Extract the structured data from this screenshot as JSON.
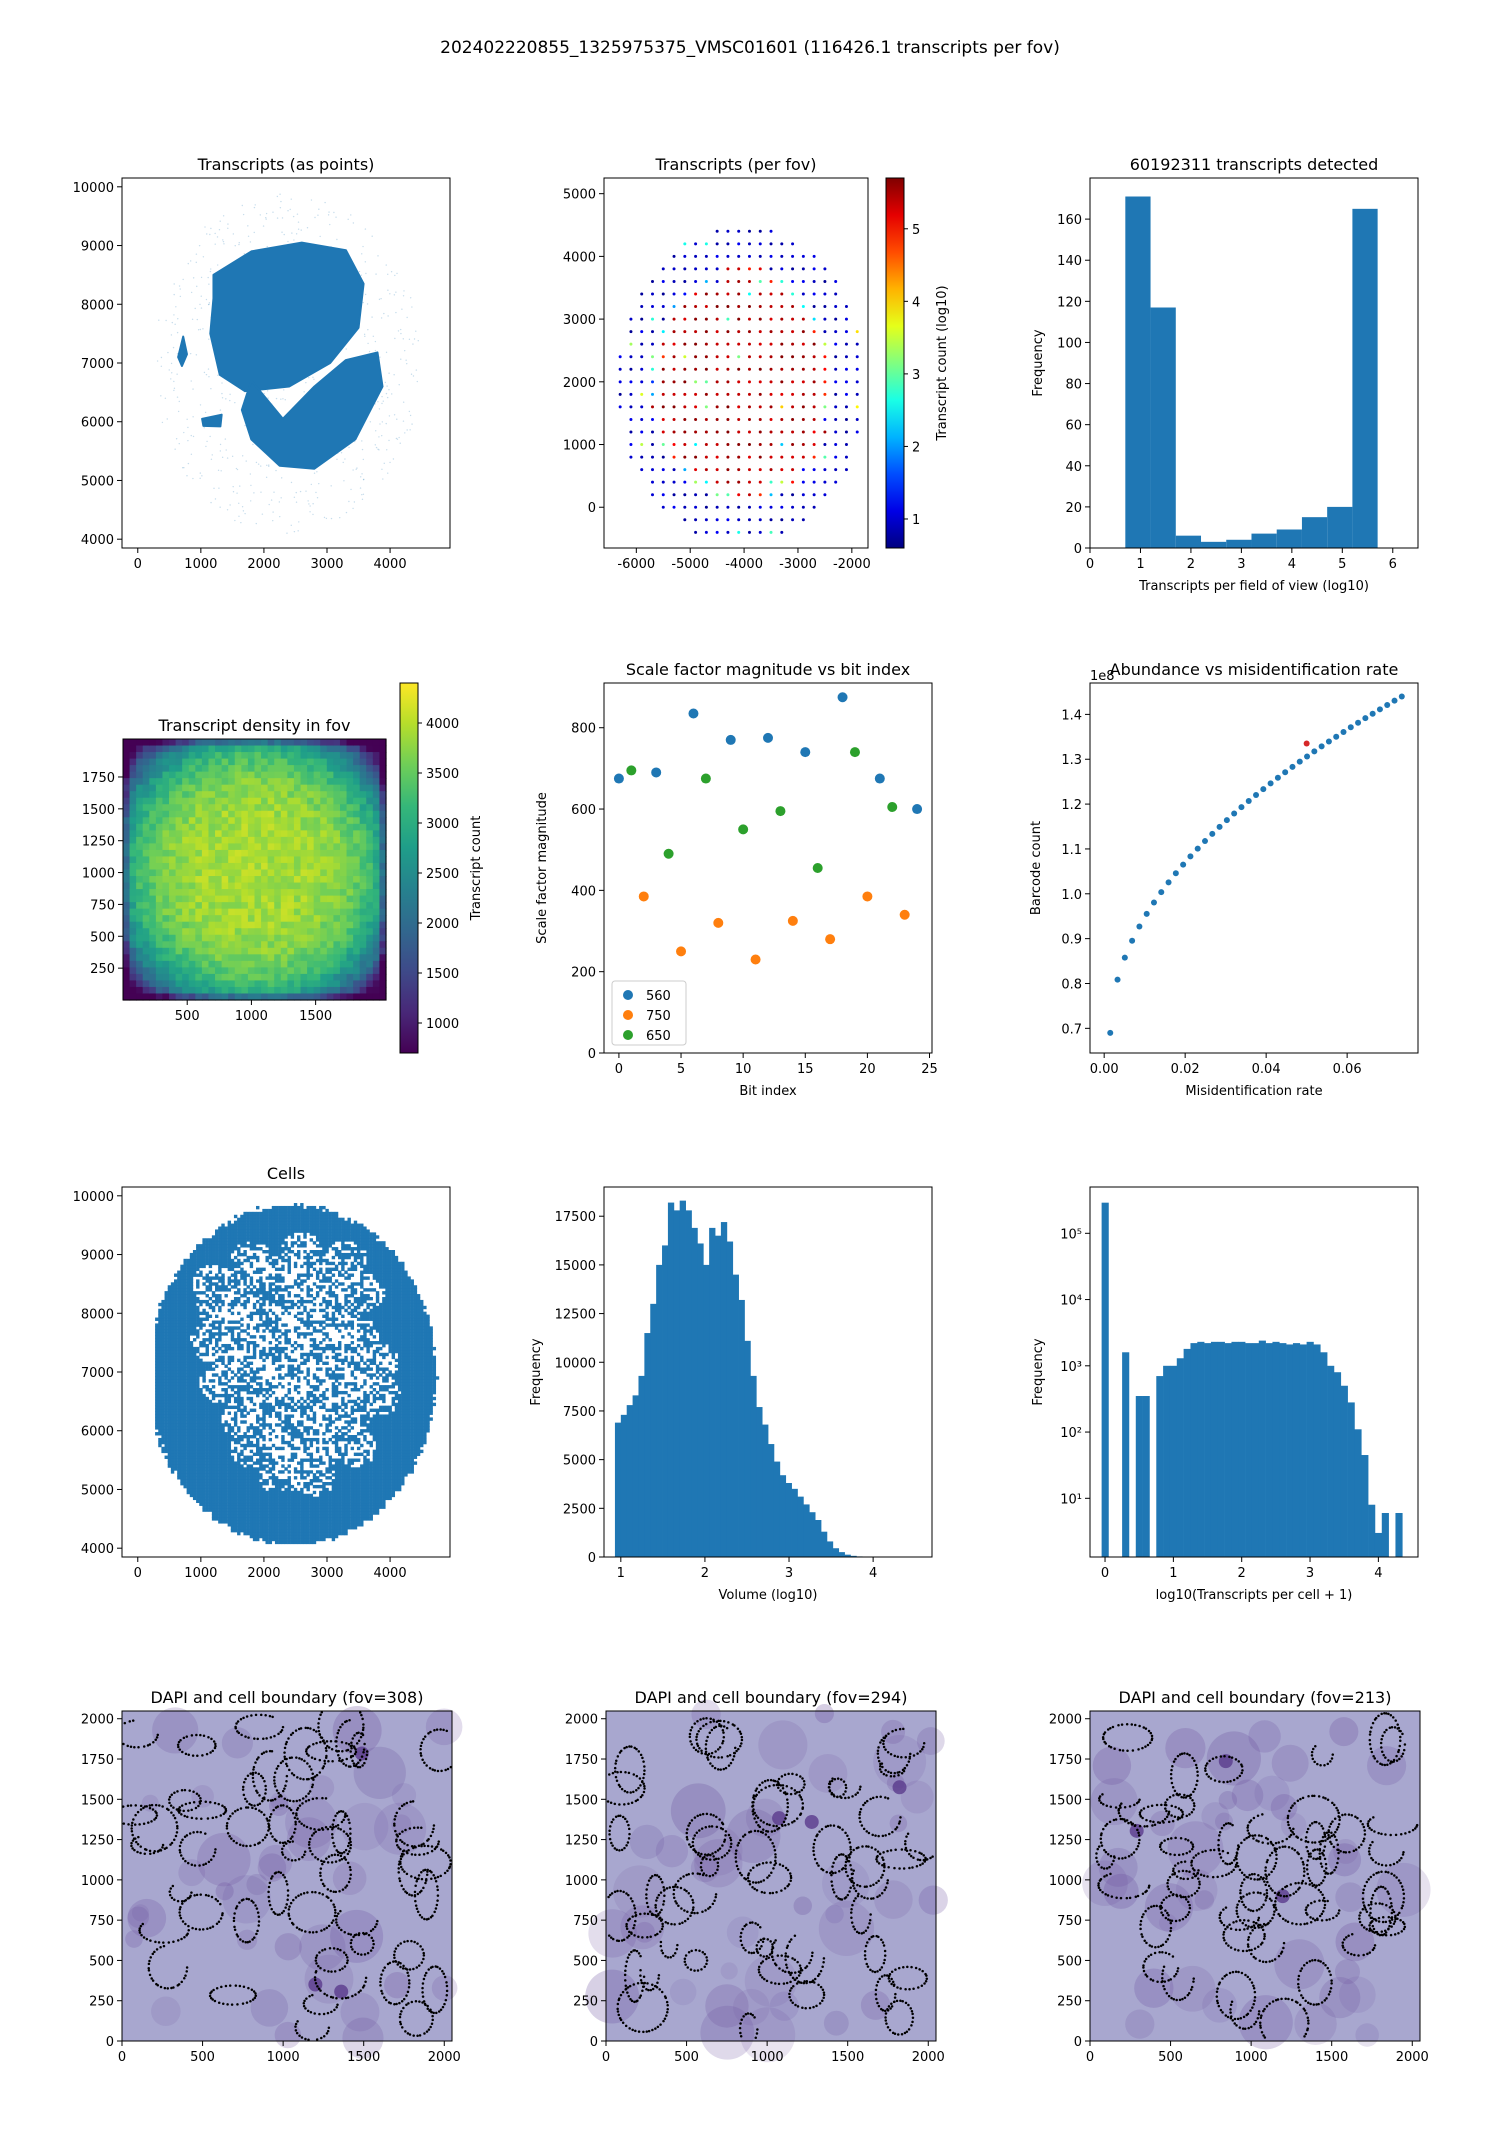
{
  "suptitle": "202402220855_1325975375_VMSC01601 (116426.1 transcripts per fov)",
  "colors": {
    "blue": "#1f77b4",
    "orange": "#ff7f0e",
    "green": "#2ca02c",
    "red": "#d62728",
    "dapi_bg": "#a8a7cf",
    "dapi_nuc": "#6a4d9c"
  },
  "chart_data": [
    {
      "id": "transcripts-points",
      "type": "scatter",
      "title": "Transcripts (as points)",
      "xlabel": "",
      "ylabel": "",
      "xlim": [
        -250,
        4950
      ],
      "ylim": [
        3850,
        10150
      ],
      "xticks": [
        0,
        1000,
        2000,
        3000,
        4000
      ],
      "yticks": [
        4000,
        5000,
        6000,
        7000,
        8000,
        9000,
        10000
      ],
      "shapes": [
        {
          "name": "upper-lobe",
          "points": [
            [
              1200,
              8500
            ],
            [
              1800,
              8900
            ],
            [
              2600,
              9050
            ],
            [
              3300,
              8920
            ],
            [
              3580,
              8350
            ],
            [
              3500,
              7600
            ],
            [
              3050,
              7000
            ],
            [
              2400,
              6600
            ],
            [
              1700,
              6520
            ],
            [
              1300,
              6800
            ],
            [
              1150,
              7500
            ],
            [
              1200,
              8100
            ]
          ]
        },
        {
          "name": "lower-lobe",
          "points": [
            [
              1800,
              6700
            ],
            [
              2300,
              6050
            ],
            [
              2800,
              6600
            ],
            [
              3300,
              7050
            ],
            [
              3800,
              7180
            ],
            [
              3880,
              6600
            ],
            [
              3450,
              5700
            ],
            [
              2800,
              5200
            ],
            [
              2250,
              5250
            ],
            [
              1800,
              5700
            ],
            [
              1650,
              6200
            ]
          ]
        },
        {
          "name": "fragment-1",
          "points": [
            [
              640,
              7100
            ],
            [
              720,
              7450
            ],
            [
              780,
              7150
            ],
            [
              700,
              6950
            ]
          ]
        },
        {
          "name": "fragment-2",
          "points": [
            [
              1020,
              6050
            ],
            [
              1330,
              6120
            ],
            [
              1310,
              5920
            ],
            [
              1040,
              5930
            ]
          ]
        }
      ]
    },
    {
      "id": "transcripts-per-fov",
      "type": "scatter",
      "title": "Transcripts (per fov)",
      "xlabel": "",
      "ylabel": "",
      "xlim": [
        -6600,
        -1700
      ],
      "ylim": [
        -650,
        5250
      ],
      "xticks": [
        -6000,
        -5000,
        -4000,
        -3000,
        -2000
      ],
      "yticks": [
        0,
        1000,
        2000,
        3000,
        4000,
        5000
      ],
      "grid": {
        "x_start": -6300,
        "x_step": 200,
        "x_count": 36,
        "y_start": -400,
        "y_step": 200,
        "y_count": 29,
        "center": [
          -4050,
          1950
        ],
        "rx": 2300,
        "ry": 2550
      },
      "value_range": [
        0.6,
        5.7
      ],
      "colorbar": {
        "label": "Transcript count (log10)",
        "ticks": [
          1,
          2,
          3,
          4,
          5
        ]
      }
    },
    {
      "id": "transcripts-hist",
      "type": "bar",
      "title": "60192311 transcripts detected",
      "xlabel": "Transcripts per field of view (log10)",
      "ylabel": "Frequency",
      "xlim": [
        0,
        6.5
      ],
      "ylim": [
        0,
        180
      ],
      "xticks": [
        0,
        1,
        2,
        3,
        4,
        5,
        6
      ],
      "yticks": [
        0,
        20,
        40,
        60,
        80,
        100,
        120,
        140,
        160
      ],
      "bin_edges": [
        0.7,
        1.2,
        1.7,
        2.2,
        2.7,
        3.2,
        3.7,
        4.2,
        4.7,
        5.2,
        5.7
      ],
      "values": [
        171,
        117,
        6,
        3,
        4,
        7,
        9,
        15,
        20,
        165
      ]
    },
    {
      "id": "density-heatmap",
      "type": "heatmap",
      "title": "Transcript density in fov",
      "xlabel": "",
      "ylabel": "",
      "xlim": [
        0,
        2048
      ],
      "ylim": [
        0,
        2048
      ],
      "xticks": [
        500,
        1000,
        1500
      ],
      "yticks": [
        250,
        500,
        750,
        1000,
        1250,
        1500,
        1750
      ],
      "value_range": [
        700,
        4400
      ],
      "colorbar": {
        "label": "Transcript count",
        "ticks": [
          1000,
          1500,
          2000,
          2500,
          3000,
          3500,
          4000
        ]
      }
    },
    {
      "id": "scale-factor",
      "type": "scatter",
      "title": "Scale factor magnitude vs bit index",
      "xlabel": "Bit index",
      "ylabel": "Scale factor magnitude",
      "xlim": [
        -1.2,
        25.2
      ],
      "ylim": [
        0,
        910
      ],
      "xticks": [
        0,
        5,
        10,
        15,
        20,
        25
      ],
      "yticks": [
        0,
        200,
        400,
        600,
        800
      ],
      "legend": "lower-left",
      "series": [
        {
          "name": "560",
          "x": [
            0,
            3,
            6,
            9,
            12,
            15,
            18,
            21,
            24
          ],
          "y": [
            675,
            690,
            835,
            770,
            775,
            740,
            875,
            675,
            600
          ]
        },
        {
          "name": "750",
          "x": [
            2,
            5,
            8,
            11,
            14,
            17,
            20,
            23
          ],
          "y": [
            385,
            250,
            320,
            230,
            325,
            280,
            385,
            340
          ]
        },
        {
          "name": "650",
          "x": [
            1,
            4,
            7,
            10,
            13,
            16,
            19,
            22
          ],
          "y": [
            695,
            490,
            675,
            550,
            595,
            455,
            740,
            605
          ]
        }
      ]
    },
    {
      "id": "abundance",
      "type": "scatter",
      "title": "Abundance vs misidentification rate",
      "xlabel": "Misidentification rate",
      "ylabel": "Barcode count",
      "offset_label": "1e8",
      "xlim": [
        -0.0035,
        0.0775
      ],
      "ylim": [
        0.645,
        1.47
      ],
      "xticks": [
        0.0,
        0.02,
        0.04,
        0.06
      ],
      "yticks": [
        0.7,
        0.8,
        0.9,
        1.0,
        1.1,
        1.2,
        1.3,
        1.4
      ],
      "curve": {
        "x_start": 0.0015,
        "x_step": 0.0018,
        "count": 41,
        "y_min": 0.69,
        "y_max": 1.44,
        "exponent": 0.5
      },
      "highlight": {
        "x": 0.05,
        "y": 1.335
      }
    },
    {
      "id": "cells",
      "type": "scatter",
      "title": "Cells",
      "xlabel": "",
      "ylabel": "",
      "xlim": [
        -250,
        4950
      ],
      "ylim": [
        3850,
        10150
      ],
      "xticks": [
        0,
        1000,
        2000,
        3000,
        4000
      ],
      "yticks": [
        4000,
        5000,
        6000,
        7000,
        8000,
        9000,
        10000
      ]
    },
    {
      "id": "volume-hist",
      "type": "bar",
      "title": "",
      "xlabel": "Volume (log10)",
      "ylabel": "Frequency",
      "xlim": [
        0.8,
        4.7
      ],
      "ylim": [
        0,
        19000
      ],
      "xticks": [
        1,
        2,
        3,
        4
      ],
      "yticks": [
        0,
        2500,
        5000,
        7500,
        10000,
        12500,
        15000,
        17500
      ],
      "bin_start": 0.93,
      "bin_width": 0.07,
      "values": [
        6900,
        7300,
        7800,
        8300,
        9300,
        11500,
        13000,
        15000,
        16000,
        18200,
        17800,
        18300,
        17800,
        16900,
        16100,
        15000,
        16900,
        16500,
        17200,
        16200,
        14500,
        13200,
        11100,
        9300,
        7700,
        6800,
        5800,
        4900,
        4200,
        3800,
        3500,
        3100,
        2700,
        2300,
        1900,
        1300,
        800,
        450,
        250,
        120,
        60,
        30,
        15,
        8
      ]
    },
    {
      "id": "transcripts-per-cell",
      "type": "bar",
      "title": "",
      "xlabel": "log10(Transcripts per cell + 1)",
      "ylabel": "Frequency",
      "log_y": true,
      "xlim": [
        -0.22,
        4.58
      ],
      "ylim": [
        1.3,
        500000
      ],
      "xticks": [
        0,
        1,
        2,
        3,
        4
      ],
      "yticks": [
        10,
        100,
        1000,
        10000,
        100000
      ],
      "ytick_labels": [
        "10¹",
        "10²",
        "10³",
        "10⁴",
        "10⁵"
      ],
      "bin_start": -0.05,
      "bin_width": 0.1,
      "values": [
        290000,
        0,
        0,
        1600,
        0,
        350,
        350,
        0,
        700,
        1000,
        1000,
        1300,
        1800,
        2200,
        2300,
        2200,
        2300,
        2300,
        2200,
        2300,
        2300,
        2200,
        2200,
        2400,
        2200,
        2300,
        2200,
        2100,
        2200,
        2100,
        2300,
        2100,
        1600,
        1000,
        800,
        500,
        280,
        110,
        45,
        8,
        3,
        6,
        0,
        6
      ]
    },
    {
      "id": "dapi-308",
      "type": "image",
      "title": "DAPI and cell boundary (fov=308)",
      "xlim": [
        0,
        2048
      ],
      "ylim": [
        0,
        2048
      ],
      "xticks": [
        0,
        500,
        1000,
        1500,
        2000
      ],
      "yticks": [
        0,
        250,
        500,
        750,
        1000,
        1250,
        1500,
        1750,
        2000
      ]
    },
    {
      "id": "dapi-294",
      "type": "image",
      "title": "DAPI and cell boundary (fov=294)",
      "xlim": [
        0,
        2048
      ],
      "ylim": [
        0,
        2048
      ],
      "xticks": [
        0,
        500,
        1000,
        1500,
        2000
      ],
      "yticks": [
        0,
        250,
        500,
        750,
        1000,
        1250,
        1500,
        1750,
        2000
      ]
    },
    {
      "id": "dapi-213",
      "type": "image",
      "title": "DAPI and cell boundary (fov=213)",
      "xlim": [
        0,
        2048
      ],
      "ylim": [
        0,
        2048
      ],
      "xticks": [
        0,
        500,
        1000,
        1500,
        2000
      ],
      "yticks": [
        0,
        250,
        500,
        750,
        1000,
        1250,
        1500,
        1750,
        2000
      ]
    }
  ]
}
